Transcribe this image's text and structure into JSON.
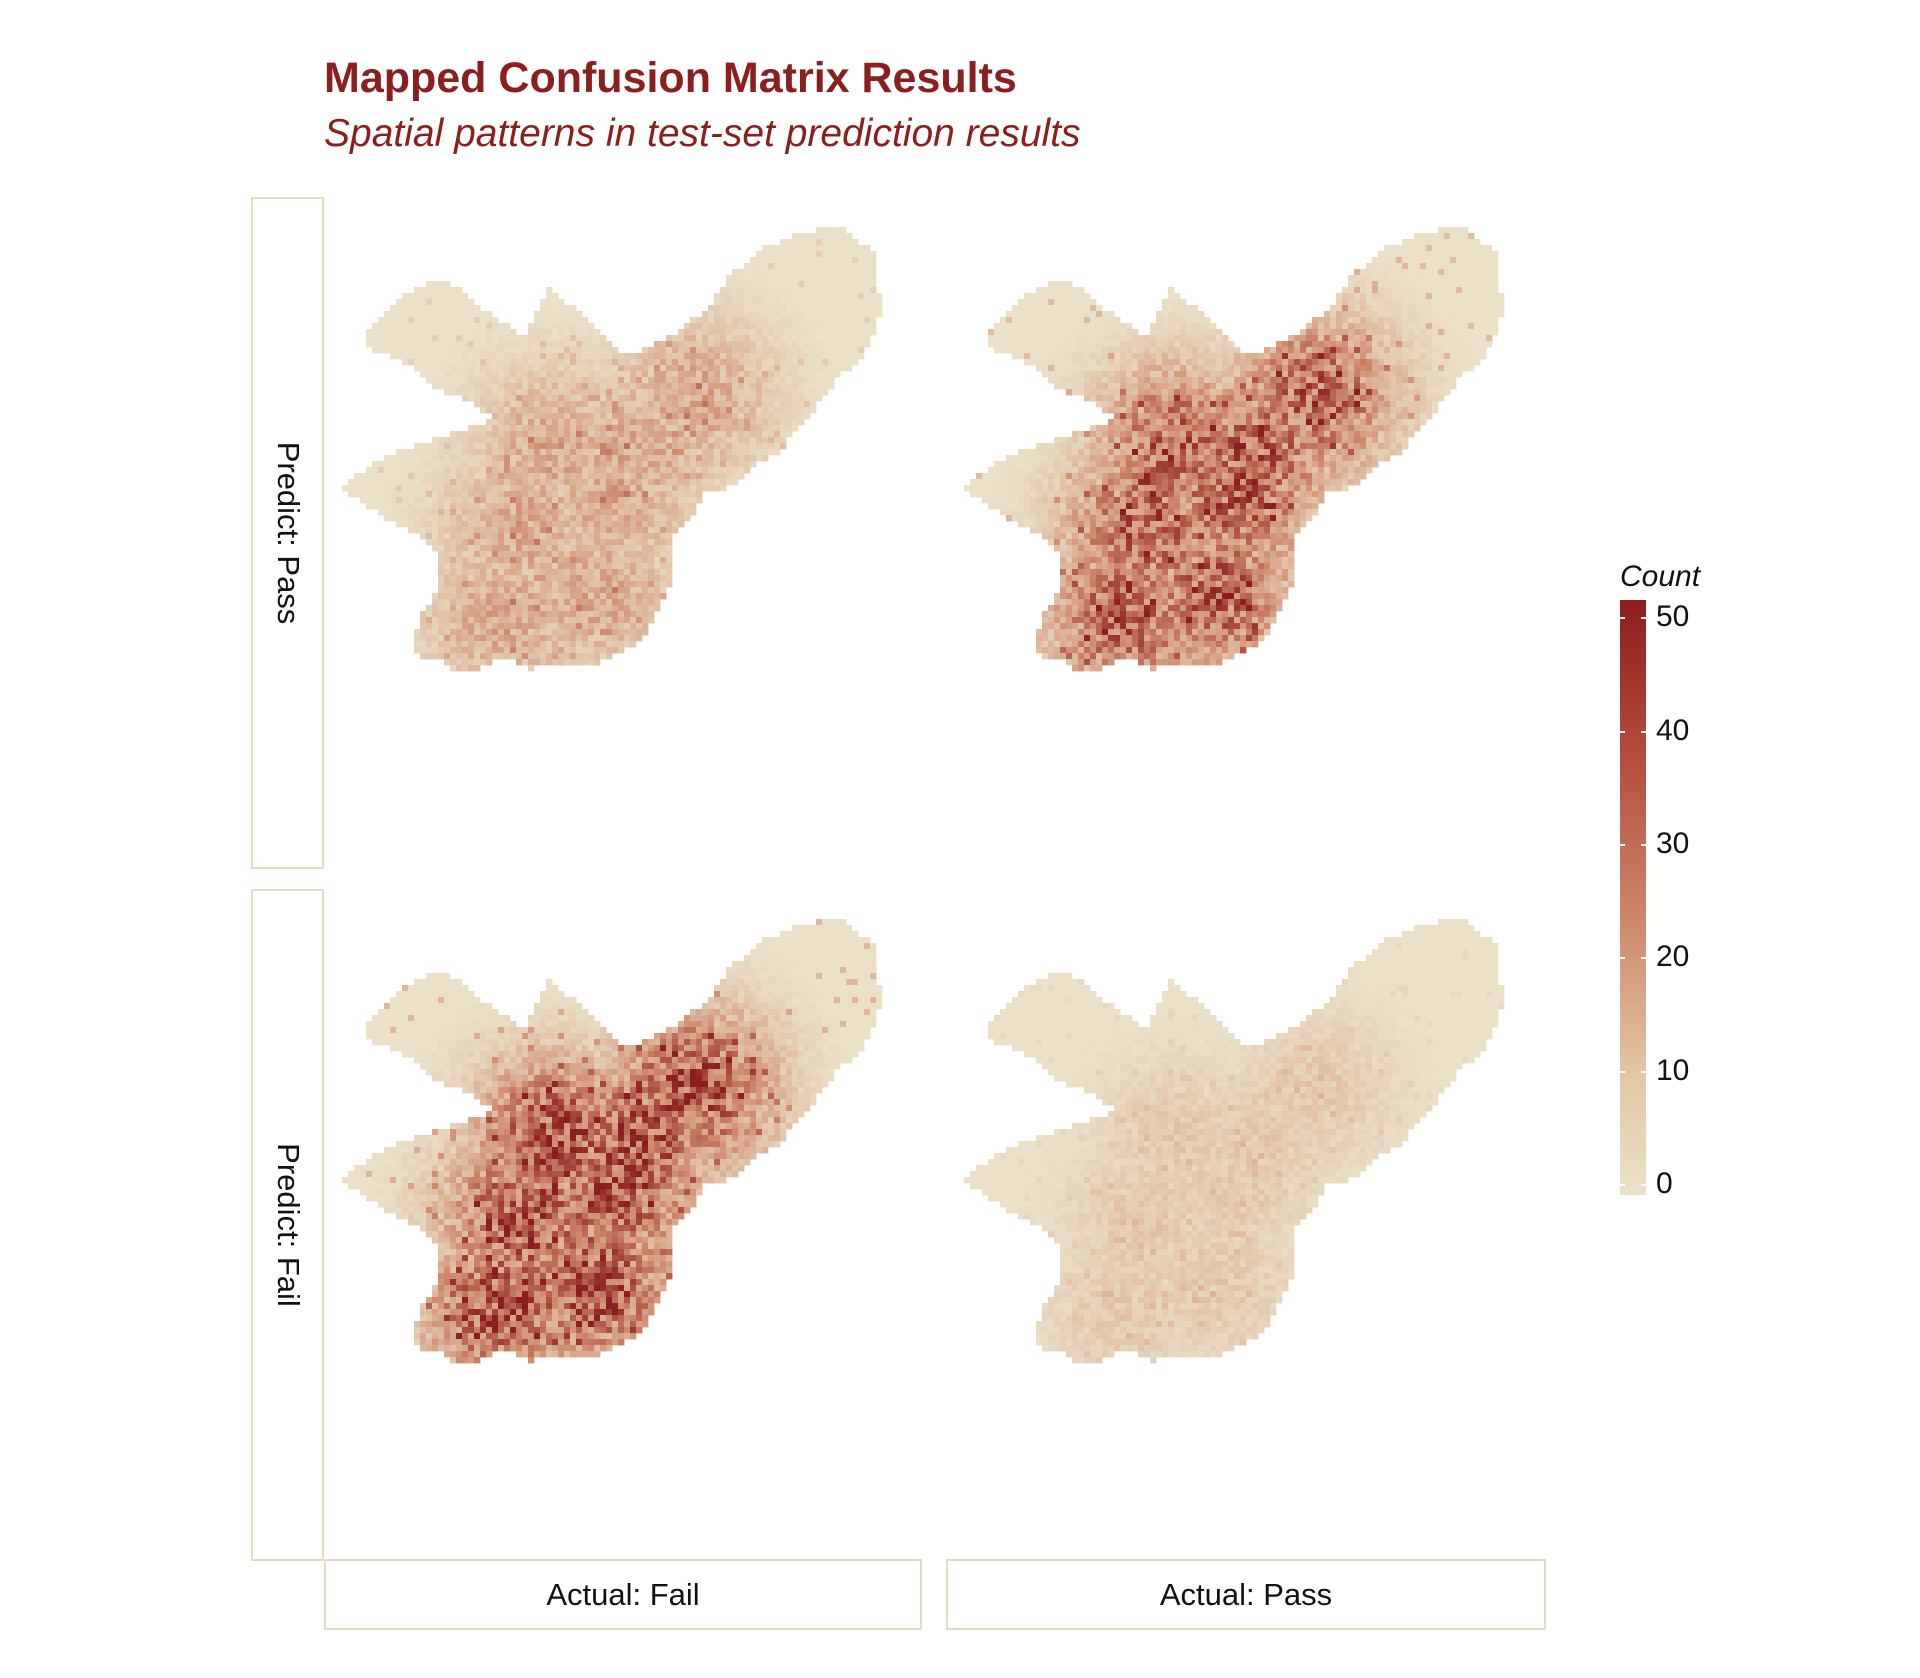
{
  "title": "Mapped Confusion Matrix Results",
  "subtitle": "Spatial patterns in test-set prediction results",
  "facets": {
    "rows": [
      "Predict: Pass",
      "Predict: Fail"
    ],
    "cols": [
      "Actual: Fail",
      "Actual: Pass"
    ]
  },
  "legend": {
    "title": "Count",
    "ticks": [
      "50",
      "40",
      "30",
      "20",
      "10",
      "0"
    ],
    "max": 52,
    "colors": {
      "high": "#8B1E1E",
      "low": "#ebe1c9"
    }
  },
  "panels": [
    {
      "row": "Predict: Pass",
      "col": "Actual: Fail",
      "intensity": 0.42
    },
    {
      "row": "Predict: Pass",
      "col": "Actual: Pass",
      "intensity": 0.85
    },
    {
      "row": "Predict: Fail",
      "col": "Actual: Fail",
      "intensity": 0.95
    },
    {
      "row": "Predict: Fail",
      "col": "Actual: Pass",
      "intensity": 0.18
    }
  ]
}
